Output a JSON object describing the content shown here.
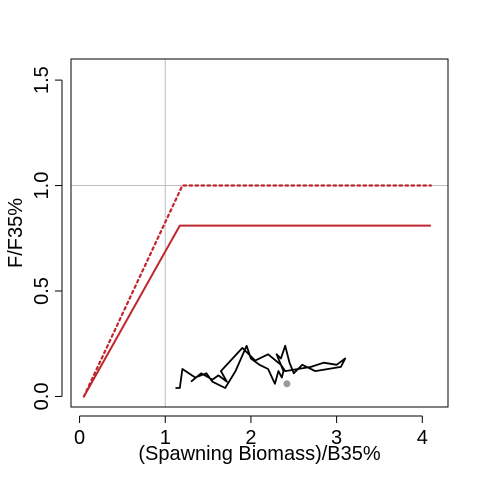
{
  "chart_data": {
    "type": "line",
    "xlabel": "(Spawning Biomass)/B35%",
    "ylabel": "F/F35%",
    "xlim": [
      -0.1,
      4.3
    ],
    "ylim": [
      -0.05,
      1.6
    ],
    "x_ticks": [
      0,
      1,
      2,
      3,
      4
    ],
    "y_ticks": [
      0.0,
      0.5,
      1.0,
      1.5
    ],
    "x_tick_labels": [
      "0",
      "1",
      "2",
      "3",
      "4"
    ],
    "y_tick_labels": [
      "0.0",
      "0.5",
      "1.0",
      "1.5"
    ],
    "reference_lines": {
      "vertical_x": 1.0,
      "horizontal_y": 1.0,
      "color": "#bebebe"
    },
    "series": [
      {
        "style": "dotted",
        "color": "#c0262d",
        "x": [
          0.05,
          1.2,
          4.1
        ],
        "y": [
          0.0,
          1.0,
          1.0
        ]
      },
      {
        "style": "solid",
        "color": "#c0262d",
        "x": [
          0.05,
          1.17,
          4.1
        ],
        "y": [
          0.0,
          0.81,
          0.81
        ]
      },
      {
        "style": "solid",
        "color": "#000000",
        "x": [
          1.3,
          1.42,
          1.55,
          1.62,
          1.72,
          1.65,
          1.9,
          2.05,
          2.2,
          2.35,
          2.4,
          2.55,
          2.7,
          2.85,
          3.0,
          3.1,
          3.05,
          2.9,
          2.75,
          2.6,
          2.5,
          2.45,
          2.4,
          2.35,
          2.3,
          2.35,
          2.38,
          2.36,
          2.32,
          2.28,
          2.2,
          2.1,
          2.0,
          1.95,
          1.82,
          1.7,
          1.55,
          1.48,
          1.35,
          1.2,
          1.17,
          1.12
        ],
        "y": [
          0.07,
          0.11,
          0.08,
          0.1,
          0.07,
          0.12,
          0.23,
          0.17,
          0.2,
          0.15,
          0.12,
          0.13,
          0.14,
          0.16,
          0.15,
          0.18,
          0.14,
          0.13,
          0.12,
          0.15,
          0.11,
          0.16,
          0.24,
          0.18,
          0.2,
          0.15,
          0.12,
          0.09,
          0.12,
          0.06,
          0.13,
          0.15,
          0.18,
          0.24,
          0.12,
          0.04,
          0.07,
          0.11,
          0.09,
          0.13,
          0.04,
          0.04
        ]
      }
    ],
    "points": [
      {
        "x": 2.42,
        "y": 0.06,
        "color": "#9a9a9a"
      }
    ]
  }
}
